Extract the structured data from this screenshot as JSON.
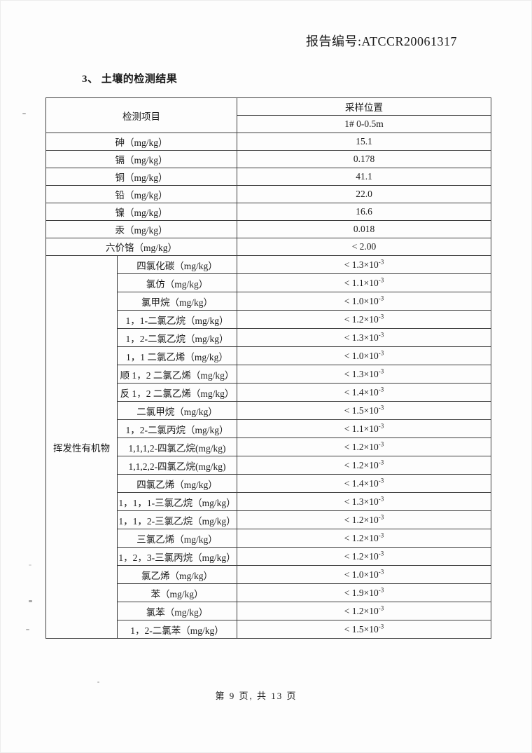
{
  "page": {
    "report_no": "报告编号:ATCCR20061317",
    "section_title": "3、 土壤的检测结果",
    "footer": "第 9 页, 共 13 页"
  },
  "colors": {
    "ink": "#1a1a1a",
    "table_border": "#3d3d3d",
    "paper": "#fdfdfd"
  },
  "table": {
    "header": {
      "item_col": "检测项目",
      "sampling_col": "采样位置",
      "sampling_point": "1# 0-0.5m"
    },
    "group_label": "挥发性有机物",
    "simple_rows": [
      {
        "item": "砷（mg/kg）",
        "value": "15.1"
      },
      {
        "item": "镉（mg/kg）",
        "value": "0.178"
      },
      {
        "item": "铜（mg/kg）",
        "value": "41.1"
      },
      {
        "item": "铅（mg/kg）",
        "value": "22.0"
      },
      {
        "item": "镍（mg/kg）",
        "value": "16.6"
      },
      {
        "item": "汞（mg/kg）",
        "value": "0.018"
      },
      {
        "item": "六价铬（mg/kg）",
        "value": "< 2.00"
      }
    ],
    "voc_rows": [
      {
        "item": "四氯化碳（mg/kg）",
        "value": "< 1.3×10",
        "exp": "-3"
      },
      {
        "item": "氯仿（mg/kg）",
        "value": "< 1.1×10",
        "exp": "-3"
      },
      {
        "item": "氯甲烷（mg/kg）",
        "value": "< 1.0×10",
        "exp": "-3"
      },
      {
        "item": "1，1-二氯乙烷（mg/kg）",
        "value": "< 1.2×10",
        "exp": "-3"
      },
      {
        "item": "1，2-二氯乙烷（mg/kg）",
        "value": "< 1.3×10",
        "exp": "-3"
      },
      {
        "item": "1，1 二氯乙烯（mg/kg）",
        "value": "< 1.0×10",
        "exp": "-3"
      },
      {
        "item": "顺 1，2 二氯乙烯（mg/kg）",
        "value": "< 1.3×10",
        "exp": "-3"
      },
      {
        "item": "反 1，2 二氯乙烯（mg/kg）",
        "value": "< 1.4×10",
        "exp": "-3"
      },
      {
        "item": "二氯甲烷（mg/kg）",
        "value": "< 1.5×10",
        "exp": "-3"
      },
      {
        "item": "1，2-二氯丙烷（mg/kg）",
        "value": "< 1.1×10",
        "exp": "-3"
      },
      {
        "item": "1,1,1,2-四氯乙烷(mg/kg)",
        "value": "< 1.2×10",
        "exp": "-3"
      },
      {
        "item": "1,1,2,2-四氯乙烷(mg/kg)",
        "value": "< 1.2×10",
        "exp": "-3"
      },
      {
        "item": "四氯乙烯（mg/kg）",
        "value": "< 1.4×10",
        "exp": "-3"
      },
      {
        "item": "1，1，1-三氯乙烷（mg/kg）",
        "value": "< 1.3×10",
        "exp": "-3"
      },
      {
        "item": "1，1，2-三氯乙烷（mg/kg）",
        "value": "< 1.2×10",
        "exp": "-3"
      },
      {
        "item": "三氯乙烯（mg/kg）",
        "value": "< 1.2×10",
        "exp": "-3"
      },
      {
        "item": "1，2，3-三氯丙烷（mg/kg）",
        "value": "< 1.2×10",
        "exp": "-3"
      },
      {
        "item": "氯乙烯（mg/kg）",
        "value": "< 1.0×10",
        "exp": "-3"
      },
      {
        "item": "苯（mg/kg）",
        "value": "< 1.9×10",
        "exp": "-3"
      },
      {
        "item": "氯苯（mg/kg）",
        "value": "< 1.2×10",
        "exp": "-3"
      },
      {
        "item": "1，2-二氯苯（mg/kg）",
        "value": "< 1.5×10",
        "exp": "-3"
      }
    ]
  }
}
